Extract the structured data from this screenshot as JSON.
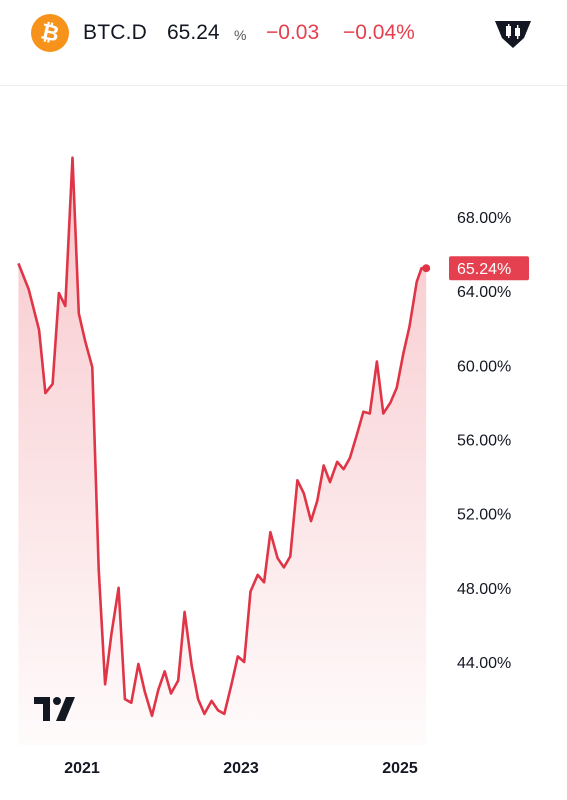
{
  "header": {
    "logo_icon": "bitcoin-icon",
    "logo_glyph": "₿",
    "symbol": "BTC.D",
    "price": "65.24",
    "unit": "%",
    "change": "−0.03",
    "change_percent": "−0.04%",
    "chart_type_icon": "candlestick-icon"
  },
  "colors": {
    "accent": "#f7931a",
    "negative": "#e5404f",
    "line": "#e03546",
    "axis_text": "#131722"
  },
  "watermark_icon": "tradingview-logo",
  "chart_data": {
    "type": "area",
    "title": "",
    "xlabel": "",
    "ylabel": "",
    "ylim": [
      40.9,
      71.4
    ],
    "y_ticks": [
      "68.00%",
      "64.00%",
      "60.00%",
      "56.00%",
      "52.00%",
      "48.00%",
      "44.00%"
    ],
    "y_tick_values": [
      68,
      64,
      60,
      56,
      52,
      48,
      44
    ],
    "x_ticks": [
      "2021",
      "2023",
      "2025"
    ],
    "x_tick_values": [
      2021.0,
      2023.0,
      2025.0
    ],
    "last_value_label": "65.24%",
    "last_value": 65.24,
    "series": [
      {
        "x": [
          2020.2,
          2020.33,
          2020.46,
          2020.54,
          2020.63,
          2020.71,
          2020.79,
          2020.88,
          2020.96,
          2021.04,
          2021.13,
          2021.21,
          2021.29,
          2021.37,
          2021.46,
          2021.54,
          2021.62,
          2021.71,
          2021.79,
          2021.88,
          2021.96,
          2022.04,
          2022.12,
          2022.21,
          2022.29,
          2022.38,
          2022.46,
          2022.54,
          2022.63,
          2022.71,
          2022.79,
          2022.88,
          2022.96,
          2023.04,
          2023.12,
          2023.21,
          2023.29,
          2023.37,
          2023.46,
          2023.54,
          2023.62,
          2023.71,
          2023.79,
          2023.88,
          2023.96,
          2024.04,
          2024.12,
          2024.21,
          2024.29,
          2024.37,
          2024.46,
          2024.54,
          2024.62,
          2024.71,
          2024.79,
          2024.88,
          2024.96,
          2025.04,
          2025.12,
          2025.21,
          2025.27,
          2025.33
        ],
        "values": [
          65.5,
          64.1,
          61.9,
          58.5,
          59.0,
          63.9,
          63.2,
          71.2,
          62.8,
          61.3,
          59.9,
          49.0,
          42.8,
          45.5,
          48.0,
          42.0,
          41.8,
          43.9,
          42.4,
          41.1,
          42.5,
          43.5,
          42.3,
          43.0,
          46.7,
          43.8,
          42.0,
          41.2,
          41.9,
          41.4,
          41.2,
          42.8,
          44.3,
          44.0,
          47.8,
          48.7,
          48.3,
          51.0,
          49.6,
          49.1,
          49.7,
          53.8,
          53.1,
          51.6,
          52.7,
          54.6,
          53.7,
          54.8,
          54.4,
          55.0,
          56.3,
          57.5,
          57.4,
          60.2,
          57.4,
          58.0,
          58.8,
          60.6,
          62.1,
          64.5,
          65.24,
          65.24
        ]
      }
    ],
    "grid": false
  }
}
